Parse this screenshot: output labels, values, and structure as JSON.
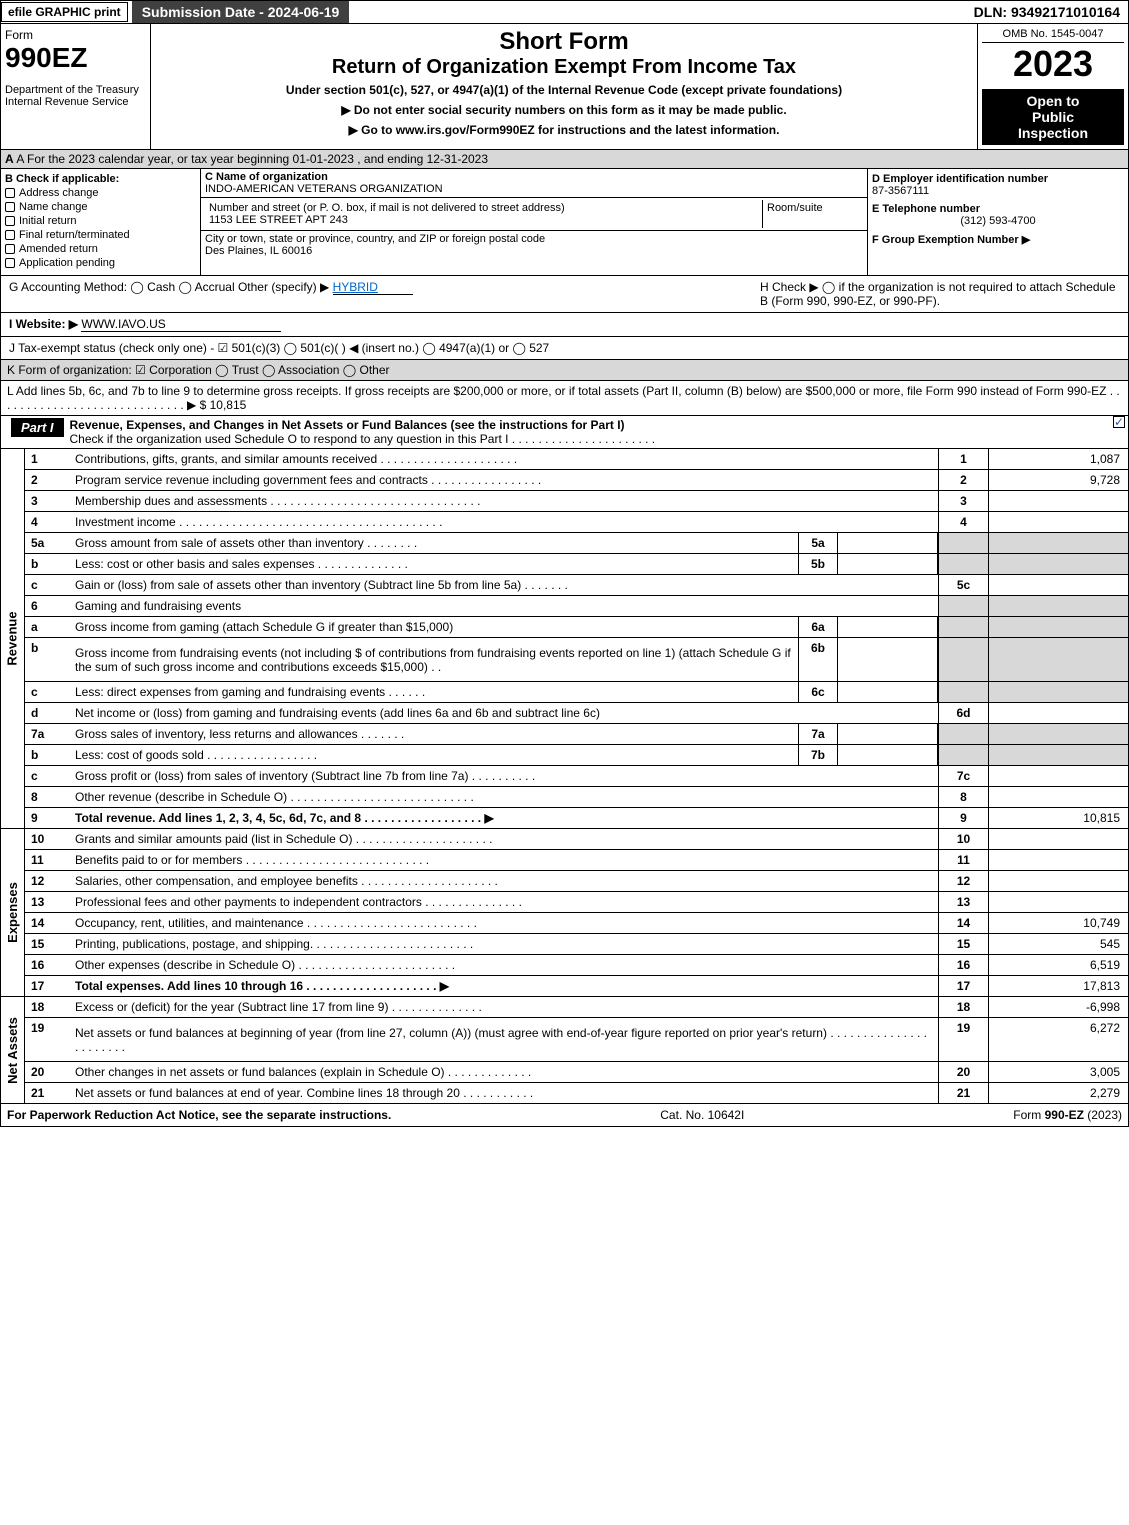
{
  "top": {
    "efile": "efile GRAPHIC print",
    "submission": "Submission Date - 2024-06-19",
    "dln": "DLN: 93492171010164"
  },
  "header": {
    "form_word": "Form",
    "form_number": "990EZ",
    "dept": "Department of the Treasury",
    "irs": "Internal Revenue Service",
    "short_form": "Short Form",
    "title": "Return of Organization Exempt From Income Tax",
    "under": "Under section 501(c), 527, or 4947(a)(1) of the Internal Revenue Code (except private foundations)",
    "ssn_note": "▶ Do not enter social security numbers on this form as it may be made public.",
    "goto": "▶ Go to www.irs.gov/Form990EZ for instructions and the latest information.",
    "omb": "OMB No. 1545-0047",
    "year": "2023",
    "open1": "Open to",
    "open2": "Public",
    "open3": "Inspection"
  },
  "secA": "A  For the 2023 calendar year, or tax year beginning 01-01-2023 , and ending 12-31-2023",
  "secB": {
    "title": "B  Check if applicable:",
    "opts": [
      "Address change",
      "Name change",
      "Initial return",
      "Final return/terminated",
      "Amended return",
      "Application pending"
    ]
  },
  "secC": {
    "name_label": "C Name of organization",
    "name": "INDO-AMERICAN VETERANS ORGANIZATION",
    "addr_label": "Number and street (or P. O. box, if mail is not delivered to street address)",
    "addr": "1153 LEE STREET APT 243",
    "room_label": "Room/suite",
    "city_label": "City or town, state or province, country, and ZIP or foreign postal code",
    "city": "Des Plaines, IL  60016"
  },
  "secD": {
    "ein_label": "D Employer identification number",
    "ein": "87-3567111",
    "phone_label": "E Telephone number",
    "phone": "(312) 593-4700",
    "group_label": "F Group Exemption Number  ▶"
  },
  "meta": {
    "g": "G Accounting Method:   ◯ Cash   ◯ Accrual   Other (specify) ▶",
    "g_val": "HYBRID",
    "h": "H  Check ▶  ◯  if the organization is not required to attach Schedule B (Form 990, 990-EZ, or 990-PF).",
    "i": "I Website: ▶",
    "i_val": "WWW.IAVO.US",
    "j": "J Tax-exempt status (check only one) - ☑ 501(c)(3) ◯ 501(c)(  ) ◀ (insert no.) ◯ 4947(a)(1) or ◯ 527",
    "k": "K Form of organization:   ☑ Corporation   ◯ Trust   ◯ Association   ◯ Other",
    "l": "L Add lines 5b, 6c, and 7b to line 9 to determine gross receipts. If gross receipts are $200,000 or more, or if total assets (Part II, column (B) below) are $500,000 or more, file Form 990 instead of Form 990-EZ . . . . . . . . . . . . . . . . . . . . . . . . . . . . . ▶ $ 10,815"
  },
  "part1": {
    "label": "Part I",
    "title": "Revenue, Expenses, and Changes in Net Assets or Fund Balances (see the instructions for Part I)",
    "sub": "Check if the organization used Schedule O to respond to any question in this Part I . . . . . . . . . . . . . . . . . . . . . ."
  },
  "revenue": {
    "label": "Revenue",
    "lines": [
      {
        "n": "1",
        "d": "Contributions, gifts, grants, and similar amounts received . . . . . . . . . . . . . . . . . . . . .",
        "box": "1",
        "amt": "1,087"
      },
      {
        "n": "2",
        "d": "Program service revenue including government fees and contracts . . . . . . . . . . . . . . . . .",
        "box": "2",
        "amt": "9,728"
      },
      {
        "n": "3",
        "d": "Membership dues and assessments . . . . . . . . . . . . . . . . . . . . . . . . . . . . . . . .",
        "box": "3",
        "amt": ""
      },
      {
        "n": "4",
        "d": "Investment income . . . . . . . . . . . . . . . . . . . . . . . . . . . . . . . . . . . . . . . .",
        "box": "4",
        "amt": ""
      },
      {
        "n": "5a",
        "d": "Gross amount from sale of assets other than inventory . . . . . . . .",
        "sb": "5a",
        "sa": "",
        "shadedAmt": true
      },
      {
        "n": "b",
        "d": "Less: cost or other basis and sales expenses . . . . . . . . . . . . . .",
        "sb": "5b",
        "sa": "",
        "shadedAmt": true
      },
      {
        "n": "c",
        "d": "Gain or (loss) from sale of assets other than inventory (Subtract line 5b from line 5a) . . . . . . .",
        "box": "5c",
        "amt": ""
      },
      {
        "n": "6",
        "d": "Gaming and fundraising events",
        "noBox": true,
        "shadedAmt": true
      },
      {
        "n": "a",
        "d": "Gross income from gaming (attach Schedule G if greater than $15,000)",
        "sb": "6a",
        "sa": "",
        "shadedAmt": true
      },
      {
        "n": "b",
        "d": "Gross income from fundraising events (not including $                 of contributions from fundraising events reported on line 1) (attach Schedule G if the sum of such gross income and contributions exceeds $15,000)  . .",
        "sb": "6b",
        "sa": "",
        "tall": true,
        "shadedAmt": true
      },
      {
        "n": "c",
        "d": "Less: direct expenses from gaming and fundraising events  . . . . . .",
        "sb": "6c",
        "sa": "",
        "shadedAmt": true
      },
      {
        "n": "d",
        "d": "Net income or (loss) from gaming and fundraising events (add lines 6a and 6b and subtract line 6c)",
        "box": "6d",
        "amt": ""
      },
      {
        "n": "7a",
        "d": "Gross sales of inventory, less returns and allowances . . . . . . .",
        "sb": "7a",
        "sa": "",
        "shadedAmt": true
      },
      {
        "n": "b",
        "d": "Less: cost of goods sold        . . . . . . . . . . . . . . . . .",
        "sb": "7b",
        "sa": "",
        "shadedAmt": true
      },
      {
        "n": "c",
        "d": "Gross profit or (loss) from sales of inventory (Subtract line 7b from line 7a) . . . . . . . . . .",
        "box": "7c",
        "amt": ""
      },
      {
        "n": "8",
        "d": "Other revenue (describe in Schedule O) . . . . . . . . . . . . . . . . . . . . . . . . . . . .",
        "box": "8",
        "amt": ""
      },
      {
        "n": "9",
        "d": "Total revenue. Add lines 1, 2, 3, 4, 5c, 6d, 7c, and 8  . . . . . . . . . . . . . . . . . .  ▶",
        "box": "9",
        "amt": "10,815",
        "bold": true
      }
    ]
  },
  "expenses": {
    "label": "Expenses",
    "lines": [
      {
        "n": "10",
        "d": "Grants and similar amounts paid (list in Schedule O) . . . . . . . . . . . . . . . . . . . . .",
        "box": "10",
        "amt": ""
      },
      {
        "n": "11",
        "d": "Benefits paid to or for members      . . . . . . . . . . . . . . . . . . . . . . . . . . . .",
        "box": "11",
        "amt": ""
      },
      {
        "n": "12",
        "d": "Salaries, other compensation, and employee benefits . . . . . . . . . . . . . . . . . . . . .",
        "box": "12",
        "amt": ""
      },
      {
        "n": "13",
        "d": "Professional fees and other payments to independent contractors . . . . . . . . . . . . . . .",
        "box": "13",
        "amt": ""
      },
      {
        "n": "14",
        "d": "Occupancy, rent, utilities, and maintenance . . . . . . . . . . . . . . . . . . . . . . . . . .",
        "box": "14",
        "amt": "10,749"
      },
      {
        "n": "15",
        "d": "Printing, publications, postage, and shipping. . . . . . . . . . . . . . . . . . . . . . . . .",
        "box": "15",
        "amt": "545"
      },
      {
        "n": "16",
        "d": "Other expenses (describe in Schedule O)     . . . . . . . . . . . . . . . . . . . . . . . .",
        "box": "16",
        "amt": "6,519"
      },
      {
        "n": "17",
        "d": "Total expenses. Add lines 10 through 16     . . . . . . . . . . . . . . . . . . . .  ▶",
        "box": "17",
        "amt": "17,813",
        "bold": true
      }
    ]
  },
  "netassets": {
    "label": "Net Assets",
    "lines": [
      {
        "n": "18",
        "d": "Excess or (deficit) for the year (Subtract line 17 from line 9)       . . . . . . . . . . . . . .",
        "box": "18",
        "amt": "-6,998"
      },
      {
        "n": "19",
        "d": "Net assets or fund balances at beginning of year (from line 27, column (A)) (must agree with end-of-year figure reported on prior year's return) . . . . . . . . . . . . . . . . . . . . . . .",
        "box": "19",
        "amt": "6,272",
        "tall": true
      },
      {
        "n": "20",
        "d": "Other changes in net assets or fund balances (explain in Schedule O) . . . . . . . . . . . . .",
        "box": "20",
        "amt": "3,005"
      },
      {
        "n": "21",
        "d": "Net assets or fund balances at end of year. Combine lines 18 through 20 . . . . . . . . . . .",
        "box": "21",
        "amt": "2,279"
      }
    ]
  },
  "footer": {
    "left": "For Paperwork Reduction Act Notice, see the separate instructions.",
    "center": "Cat. No. 10642I",
    "right": "Form 990-EZ (2023)"
  },
  "colors": {
    "grey_bg": "#d8d8d8",
    "dark_bg": "#404040",
    "link": "#0066cc"
  }
}
